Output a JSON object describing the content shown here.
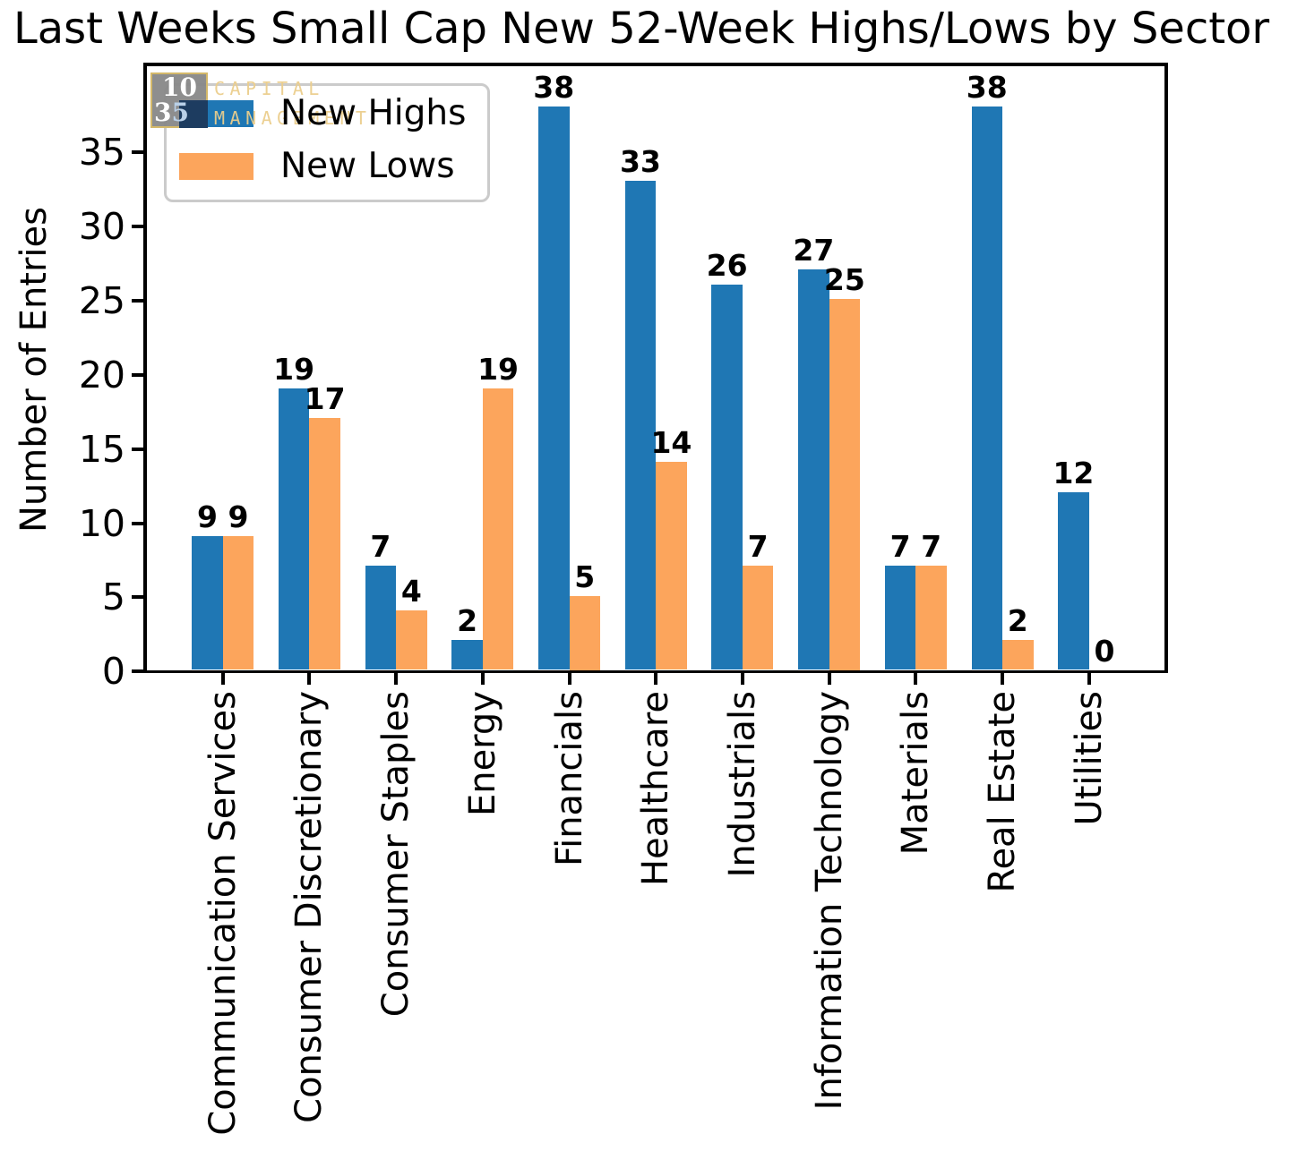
{
  "title": "Last Weeks Small Cap New 52-Week Highs/Lows by Sector",
  "legend": {
    "items": [
      {
        "label": "New Highs",
        "color": "#1f77b4"
      },
      {
        "label": "New Lows",
        "color": "#fca55c"
      }
    ]
  },
  "watermark": {
    "digits_top": "10",
    "digits_bottom_left": "3",
    "digits_bottom_right": "5",
    "text_line1": "CAPITAL",
    "text_line2": "MANAGEMENT",
    "box_color": "#898989",
    "border_color": "#d4b869",
    "navy_color": "#1d3c60",
    "gold_color": "#ebce8c"
  },
  "chart_data": {
    "type": "bar",
    "title": "Last Weeks Small Cap New 52-Week Highs/Lows by Sector",
    "xlabel": "",
    "ylabel": "Number of Entries",
    "categories": [
      "Communication Services",
      "Consumer Discretionary",
      "Consumer Staples",
      "Energy",
      "Financials",
      "Healthcare",
      "Industrials",
      "Information Technology",
      "Materials",
      "Real Estate",
      "Utilities"
    ],
    "series": [
      {
        "name": "New Highs",
        "color": "#1f77b4",
        "values": [
          9,
          19,
          7,
          2,
          38,
          33,
          26,
          27,
          7,
          38,
          12
        ]
      },
      {
        "name": "New Lows",
        "color": "#fca55c",
        "values": [
          9,
          17,
          4,
          19,
          5,
          14,
          7,
          25,
          7,
          2,
          0
        ]
      }
    ],
    "yticks": [
      0,
      5,
      10,
      15,
      20,
      25,
      30,
      35
    ],
    "ylim": [
      0,
      40.9
    ],
    "bar_value_labels": true,
    "grid": false,
    "legend_position": "upper left"
  }
}
